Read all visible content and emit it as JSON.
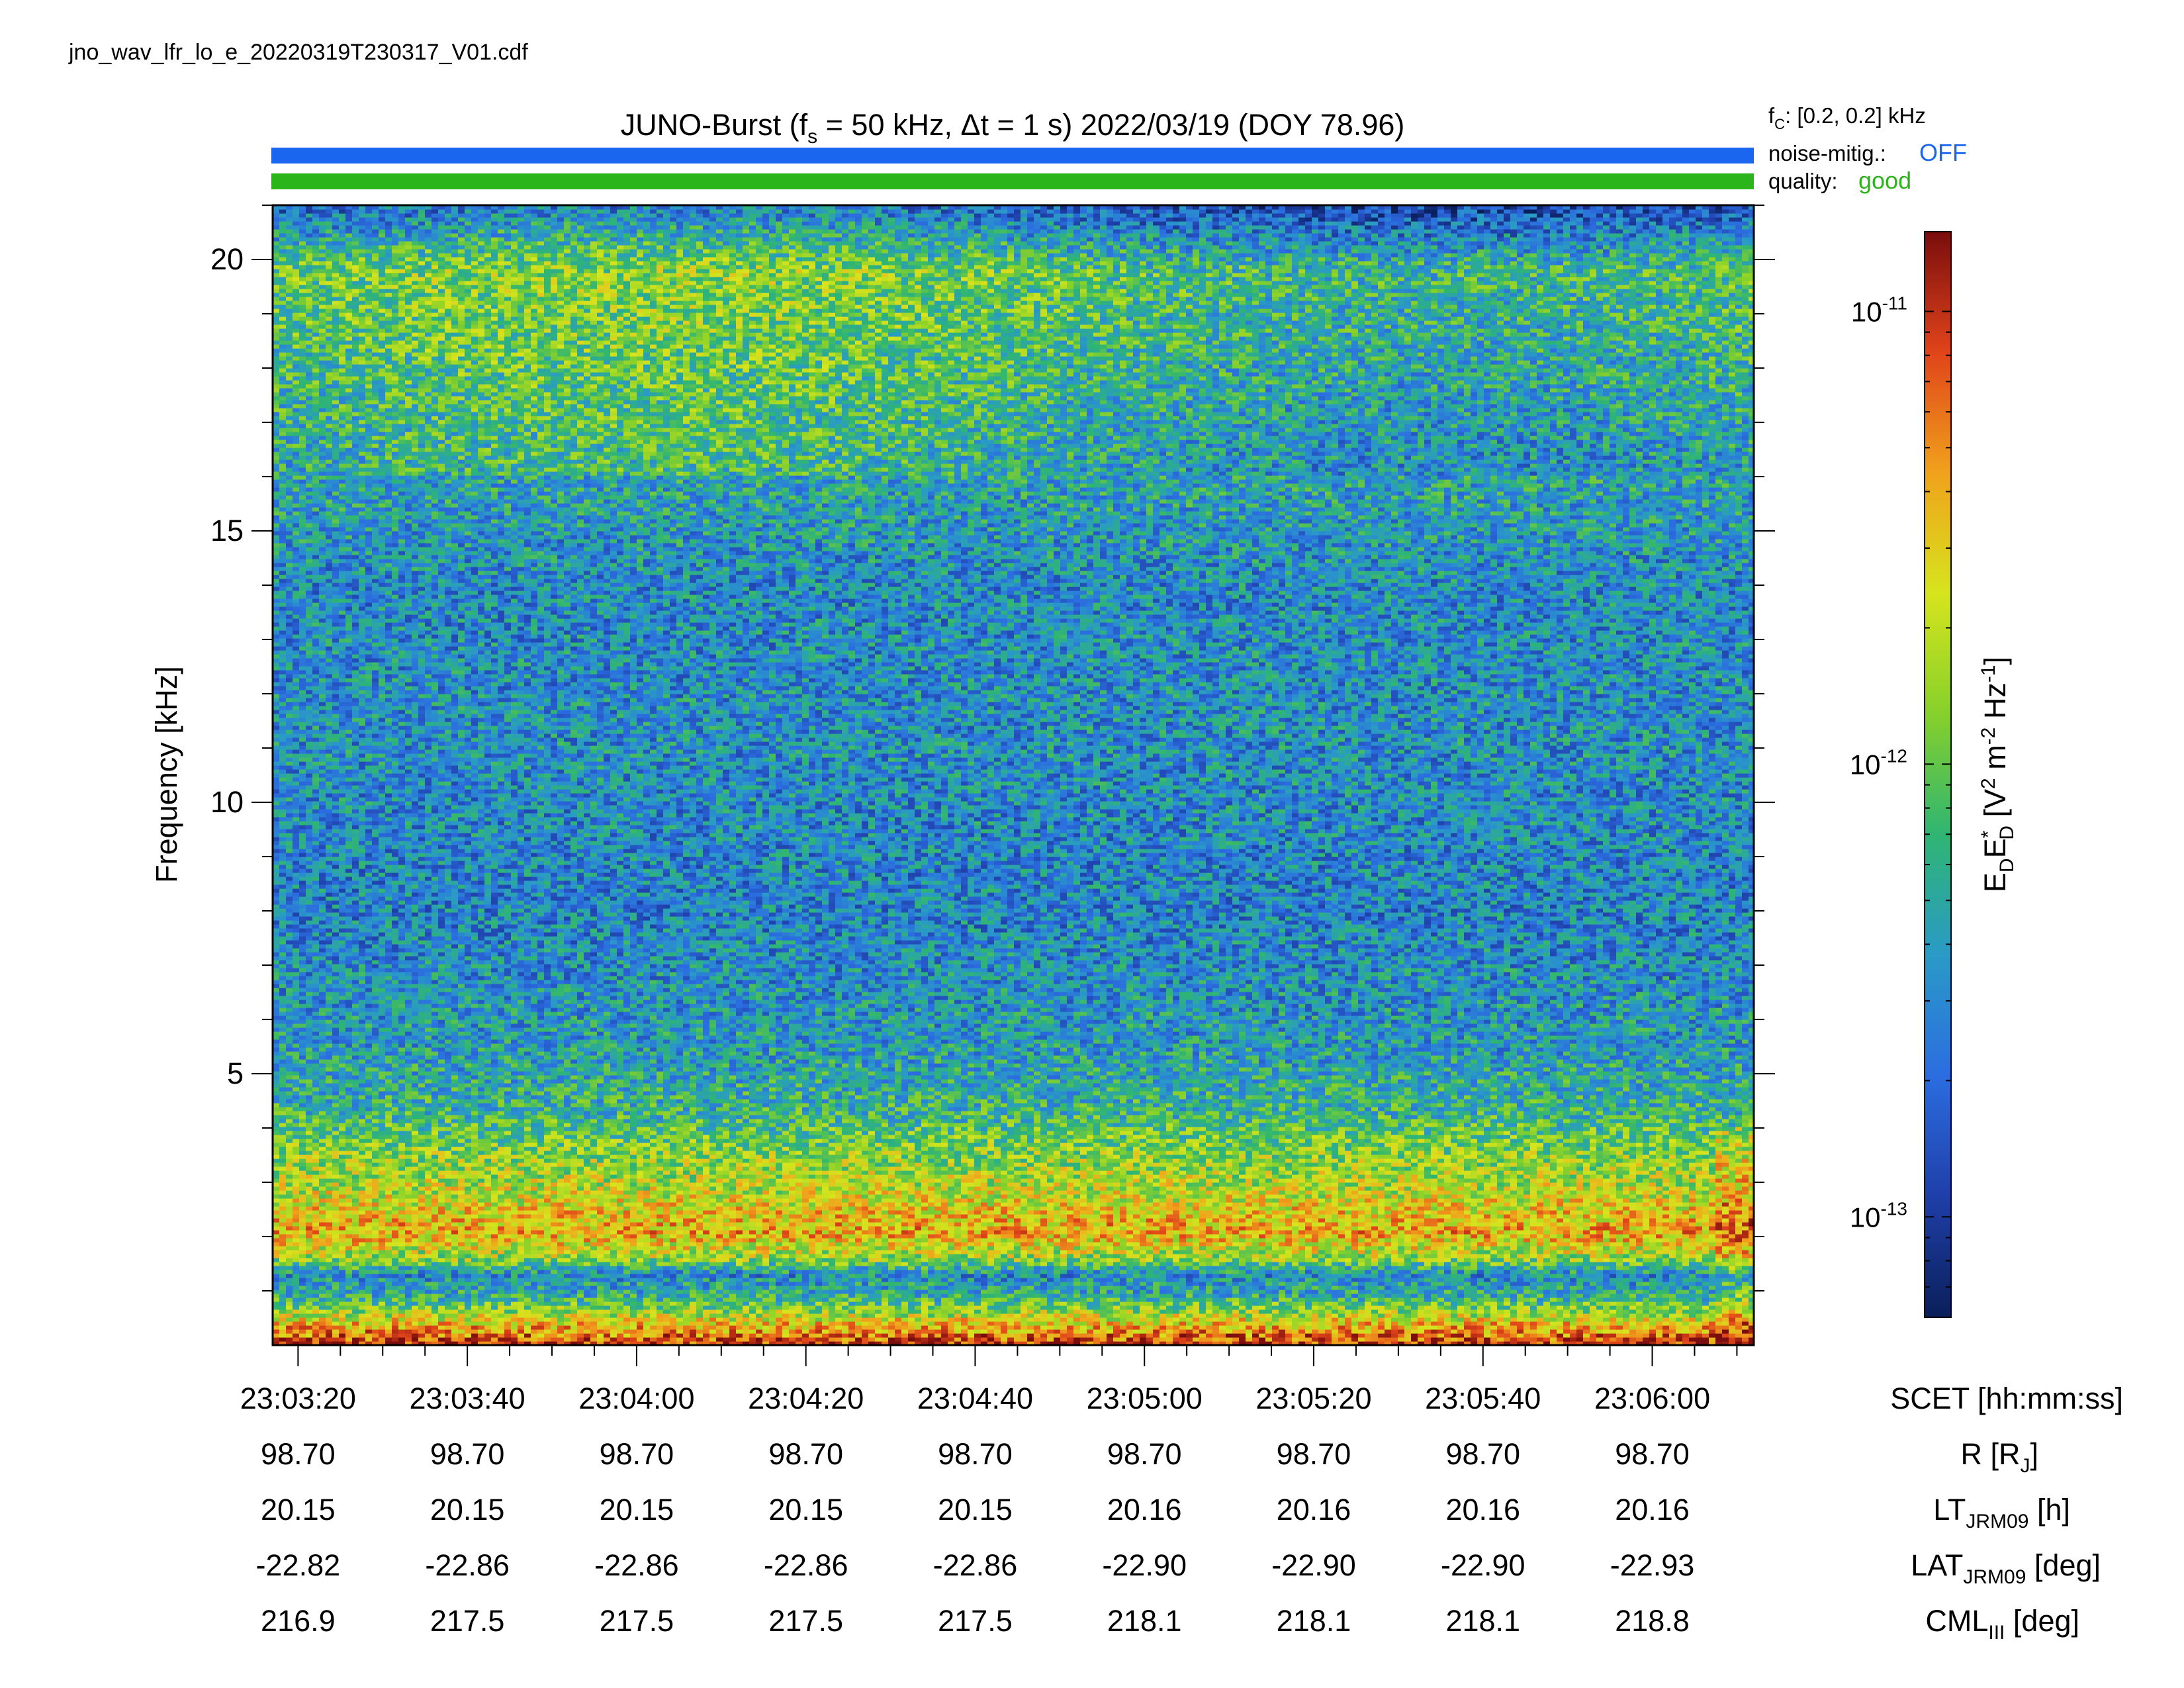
{
  "file_name": "jno_wav_lfr_lo_e_20220319T230317_V01.cdf",
  "chart_data": {
    "type": "heatmap",
    "title": {
      "prefix": "JUNO-Burst (f",
      "sub_s": "s",
      "mid": " = 50 kHz, Δt = 1 s)  2022/03/19 (DOY 78.96)"
    },
    "status": {
      "fc_pre": "f",
      "fc_sub": "C",
      "fc_post": ": [0.2, 0.2] kHz",
      "noise_label": "noise-mitig.:",
      "noise_value": "OFF",
      "noise_color": "#1a66ee",
      "quality_label": "quality:",
      "quality_value": "good",
      "quality_color": "#2cb51a"
    },
    "ylabel": "Frequency [kHz]",
    "ylim": [
      0,
      21
    ],
    "yticks": [
      {
        "value": 5,
        "label": "5"
      },
      {
        "value": 10,
        "label": "10"
      },
      {
        "value": 15,
        "label": "15"
      },
      {
        "value": 20,
        "label": "20"
      }
    ],
    "x_axis": {
      "start": "23:03:17",
      "end": "23:06:12",
      "ticks": [
        {
          "time": "23:03:20",
          "R": "98.70",
          "LT": "20.15",
          "LAT": "-22.82",
          "CML": "216.9"
        },
        {
          "time": "23:03:40",
          "R": "98.70",
          "LT": "20.15",
          "LAT": "-22.86",
          "CML": "217.5"
        },
        {
          "time": "23:04:00",
          "R": "98.70",
          "LT": "20.15",
          "LAT": "-22.86",
          "CML": "217.5"
        },
        {
          "time": "23:04:20",
          "R": "98.70",
          "LT": "20.15",
          "LAT": "-22.86",
          "CML": "217.5"
        },
        {
          "time": "23:04:40",
          "R": "98.70",
          "LT": "20.15",
          "LAT": "-22.86",
          "CML": "217.5"
        },
        {
          "time": "23:05:00",
          "R": "98.70",
          "LT": "20.16",
          "LAT": "-22.90",
          "CML": "218.1"
        },
        {
          "time": "23:05:20",
          "R": "98.70",
          "LT": "20.16",
          "LAT": "-22.90",
          "CML": "218.1"
        },
        {
          "time": "23:05:40",
          "R": "98.70",
          "LT": "20.16",
          "LAT": "-22.90",
          "CML": "218.1"
        },
        {
          "time": "23:06:00",
          "R": "98.70",
          "LT": "20.16",
          "LAT": "-22.93",
          "CML": "218.8"
        }
      ],
      "row_labels": {
        "time": {
          "main": "SCET [hh:mm:ss]"
        },
        "R": {
          "main": "R [R",
          "sub": "J",
          "post": "]"
        },
        "LT": {
          "main": "LT",
          "sub": "JRM09",
          "post": " [h]"
        },
        "LAT": {
          "main": "LAT",
          "sub": "JRM09",
          "post": " [deg]"
        },
        "CML": {
          "main": "CML",
          "sub": "III",
          "post": " [deg]"
        }
      }
    },
    "colorbar": {
      "scale": "log",
      "range": [
        6e-14,
        1.5e-11
      ],
      "label": {
        "p1": "E",
        "s1": "D",
        "p2": "E",
        "sup2": "*",
        "s2": "D",
        "p3": " [V",
        "sup3": "2",
        "p4": " m",
        "sup4": "-2",
        "p5": " Hz",
        "sup5": "-1",
        "p6": "]"
      },
      "ticks": [
        {
          "value": 1e-13,
          "base": "10",
          "exp": "-13"
        },
        {
          "value": 1e-12,
          "base": "10",
          "exp": "-12"
        },
        {
          "value": 1e-11,
          "base": "10",
          "exp": "-11"
        }
      ],
      "colors": [
        "#0a1f5a",
        "#1f3fa8",
        "#2b6de0",
        "#2a9ac6",
        "#2fb573",
        "#86d02b",
        "#d6e41d",
        "#f0a21c",
        "#e0441a",
        "#7a0d0d"
      ]
    },
    "spectrum_profile": [
      {
        "f": 0.0,
        "level": 0.93
      },
      {
        "f": 0.4,
        "level": 0.72
      },
      {
        "f": 0.9,
        "level": 0.4
      },
      {
        "f": 1.3,
        "level": 0.3
      },
      {
        "f": 1.6,
        "level": 0.58
      },
      {
        "f": 2.1,
        "level": 0.76
      },
      {
        "f": 2.8,
        "level": 0.64
      },
      {
        "f": 3.6,
        "level": 0.55
      },
      {
        "f": 4.3,
        "level": 0.42
      },
      {
        "f": 5.5,
        "level": 0.34
      },
      {
        "f": 8.0,
        "level": 0.28
      },
      {
        "f": 11.0,
        "level": 0.31
      },
      {
        "f": 14.0,
        "level": 0.3
      },
      {
        "f": 16.0,
        "level": 0.37
      },
      {
        "f": 18.5,
        "level": 0.46
      },
      {
        "f": 19.8,
        "level": 0.5
      },
      {
        "f": 20.6,
        "level": 0.3
      },
      {
        "f": 21.0,
        "level": 0.2
      }
    ]
  }
}
